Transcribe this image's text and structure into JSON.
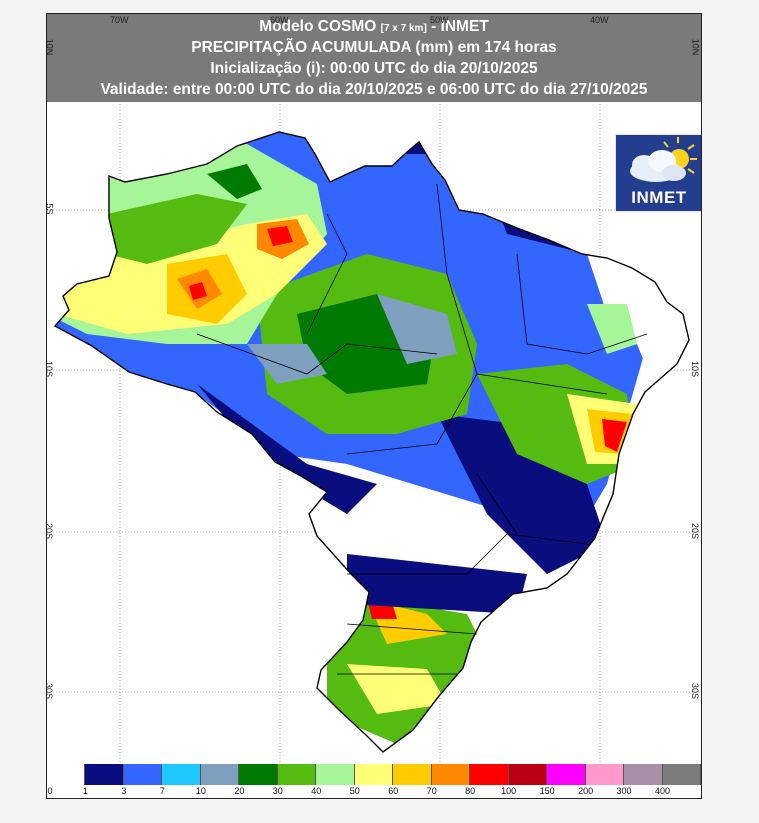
{
  "header": {
    "line1_main": "Modelo COSMO ",
    "line1_small": "[7 x 7 km]",
    "line1_suffix": " - INMET",
    "line2": "PRECIPITAÇÃO ACUMULADA (mm) em 174 horas",
    "line3": "Inicialização (i): 00:00 UTC do dia 20/10/2025",
    "line4": "Validade: entre 00:00 UTC do dia 20/10/2025 e 06:00 UTC do dia 27/10/2025"
  },
  "longitude_ticks": [
    "70W",
    "60W",
    "50W",
    "40W"
  ],
  "latitude_ticks": [
    "10N",
    "5S",
    "10S",
    "20S",
    "30S"
  ],
  "logo": {
    "text": "INMET"
  },
  "legend": {
    "labels": [
      "0",
      "1",
      "3",
      "7",
      "10",
      "20",
      "30",
      "40",
      "50",
      "60",
      "70",
      "80",
      "100",
      "150",
      "200",
      "300",
      "400"
    ],
    "colors": [
      "#ffffff",
      "#0a0d7e",
      "#3366ff",
      "#1ec8ff",
      "#7e9fbe",
      "#007a00",
      "#55bb11",
      "#a6f598",
      "#ffff77",
      "#ffcc00",
      "#ff8800",
      "#ff0000",
      "#bb0011",
      "#ff00ff",
      "#ff99cc",
      "#a890a8",
      "#7b7b7b"
    ]
  },
  "colors": {
    "header_bg": "#7a7a7a",
    "logo_bg": "#233d8f"
  }
}
